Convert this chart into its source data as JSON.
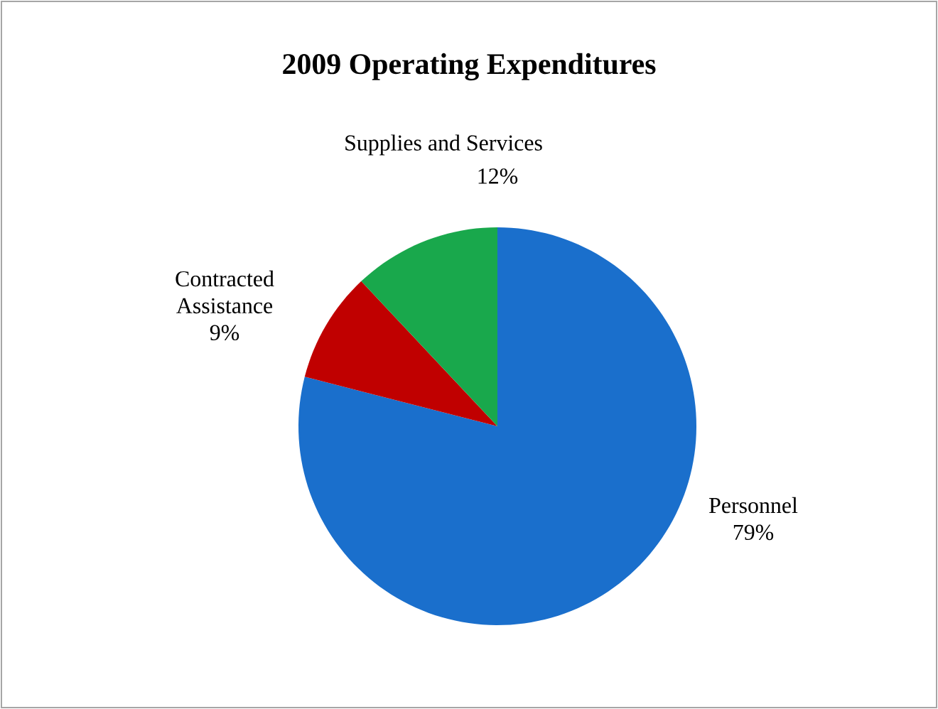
{
  "chart_data": {
    "type": "pie",
    "title": "2009 Operating Expenditures",
    "categories": [
      "Personnel",
      "Contracted Assistance",
      "Supplies and Services"
    ],
    "values": [
      79,
      9,
      12
    ],
    "value_labels": [
      "79%",
      "9%",
      "12%"
    ],
    "colors": [
      "#1a6fcc",
      "#c00000",
      "#19a84c"
    ]
  }
}
